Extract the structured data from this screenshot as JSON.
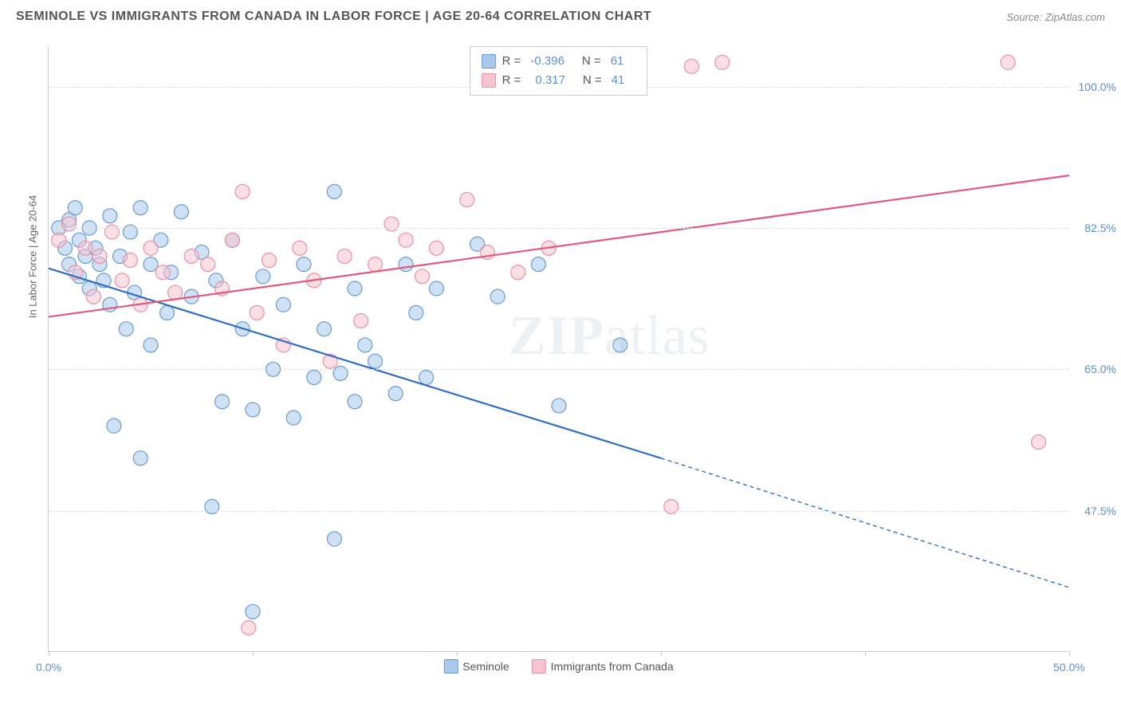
{
  "header": {
    "title": "SEMINOLE VS IMMIGRANTS FROM CANADA IN LABOR FORCE | AGE 20-64 CORRELATION CHART",
    "source": "Source: ZipAtlas.com"
  },
  "watermark": {
    "part1": "ZIP",
    "part2": "atlas"
  },
  "chart": {
    "type": "scatter",
    "y_axis_label": "In Labor Force | Age 20-64",
    "xlim": [
      0,
      50
    ],
    "ylim": [
      30,
      105
    ],
    "x_ticks": [
      0,
      10,
      20,
      30,
      40,
      50
    ],
    "x_tick_labels": {
      "0": "0.0%",
      "50": "50.0%"
    },
    "y_gridlines": [
      47.5,
      65.0,
      82.5,
      100.0
    ],
    "y_tick_labels": [
      "47.5%",
      "65.0%",
      "82.5%",
      "100.0%"
    ],
    "background_color": "#ffffff",
    "grid_color": "#dddddd",
    "axis_color": "#cccccc",
    "tick_label_color": "#5b8fd6",
    "marker_radius": 9,
    "marker_opacity": 0.55,
    "line_width": 2.2,
    "series": [
      {
        "name": "Seminole",
        "color_fill": "#a8c8ec",
        "color_stroke": "#6b9bd1",
        "line_color": "#2e6fc4",
        "R": "-0.396",
        "N": "61",
        "regression": {
          "x1": 0,
          "y1": 77.5,
          "x2": 30,
          "y2": 54,
          "dash_x2": 50,
          "dash_y2": 38
        },
        "points": [
          [
            0.5,
            82.5
          ],
          [
            0.8,
            80.0
          ],
          [
            1.0,
            83.5
          ],
          [
            1.0,
            78.0
          ],
          [
            1.3,
            85.0
          ],
          [
            1.5,
            76.5
          ],
          [
            1.5,
            81.0
          ],
          [
            1.8,
            79.0
          ],
          [
            2.0,
            75.0
          ],
          [
            2.0,
            82.5
          ],
          [
            2.3,
            80.0
          ],
          [
            2.5,
            78.0
          ],
          [
            2.7,
            76.0
          ],
          [
            3.0,
            73.0
          ],
          [
            3.0,
            84.0
          ],
          [
            3.2,
            58.0
          ],
          [
            3.5,
            79.0
          ],
          [
            3.8,
            70.0
          ],
          [
            4.0,
            82.0
          ],
          [
            4.2,
            74.5
          ],
          [
            4.5,
            85.0
          ],
          [
            4.5,
            54.0
          ],
          [
            5.0,
            78.0
          ],
          [
            5.0,
            68.0
          ],
          [
            5.5,
            81.0
          ],
          [
            5.8,
            72.0
          ],
          [
            6.0,
            77.0
          ],
          [
            6.5,
            84.5
          ],
          [
            7.0,
            74.0
          ],
          [
            7.5,
            79.5
          ],
          [
            8.0,
            48.0
          ],
          [
            8.2,
            76.0
          ],
          [
            8.5,
            61.0
          ],
          [
            9.0,
            81.0
          ],
          [
            9.5,
            70.0
          ],
          [
            10.0,
            35.0
          ],
          [
            10.0,
            60.0
          ],
          [
            10.5,
            76.5
          ],
          [
            11.0,
            65.0
          ],
          [
            11.5,
            73.0
          ],
          [
            12.0,
            59.0
          ],
          [
            12.5,
            78.0
          ],
          [
            13.0,
            64.0
          ],
          [
            13.5,
            70.0
          ],
          [
            14.0,
            87.0
          ],
          [
            14.0,
            44.0
          ],
          [
            14.3,
            64.5
          ],
          [
            15.0,
            61.0
          ],
          [
            15.0,
            75.0
          ],
          [
            15.5,
            68.0
          ],
          [
            16.0,
            66.0
          ],
          [
            17.0,
            62.0
          ],
          [
            17.5,
            78.0
          ],
          [
            18.0,
            72.0
          ],
          [
            18.5,
            64.0
          ],
          [
            19.0,
            75.0
          ],
          [
            21.0,
            80.5
          ],
          [
            22.0,
            74.0
          ],
          [
            24.0,
            78.0
          ],
          [
            25.0,
            60.5
          ],
          [
            28.0,
            68.0
          ]
        ]
      },
      {
        "name": "Immigrants from Canada",
        "color_fill": "#f6c4d0",
        "color_stroke": "#e991a7",
        "line_color": "#e05a7e",
        "R": "0.317",
        "N": "41",
        "regression": {
          "x1": 0,
          "y1": 71.5,
          "x2": 50,
          "y2": 89
        },
        "points": [
          [
            0.5,
            81.0
          ],
          [
            1.0,
            83.0
          ],
          [
            1.3,
            77.0
          ],
          [
            1.8,
            80.0
          ],
          [
            2.2,
            74.0
          ],
          [
            2.5,
            79.0
          ],
          [
            3.1,
            82.0
          ],
          [
            3.6,
            76.0
          ],
          [
            4.0,
            78.5
          ],
          [
            4.5,
            73.0
          ],
          [
            5.0,
            80.0
          ],
          [
            5.6,
            77.0
          ],
          [
            6.2,
            74.5
          ],
          [
            7.0,
            79.0
          ],
          [
            7.8,
            78.0
          ],
          [
            8.5,
            75.0
          ],
          [
            9.0,
            81.0
          ],
          [
            9.5,
            87.0
          ],
          [
            9.8,
            33.0
          ],
          [
            10.2,
            72.0
          ],
          [
            10.8,
            78.5
          ],
          [
            11.5,
            68.0
          ],
          [
            12.3,
            80.0
          ],
          [
            13.0,
            76.0
          ],
          [
            13.8,
            66.0
          ],
          [
            14.5,
            79.0
          ],
          [
            15.3,
            71.0
          ],
          [
            16.0,
            78.0
          ],
          [
            16.8,
            83.0
          ],
          [
            17.5,
            81.0
          ],
          [
            18.3,
            76.5
          ],
          [
            19.0,
            80.0
          ],
          [
            20.5,
            86.0
          ],
          [
            21.5,
            79.5
          ],
          [
            23.0,
            77.0
          ],
          [
            24.5,
            80.0
          ],
          [
            30.5,
            48.0
          ],
          [
            31.5,
            102.5
          ],
          [
            33.0,
            103.0
          ],
          [
            47.0,
            103.0
          ],
          [
            48.5,
            56.0
          ]
        ]
      }
    ],
    "legend_bottom": [
      {
        "label": "Seminole",
        "fill": "#a8c8ec",
        "stroke": "#6b9bd1"
      },
      {
        "label": "Immigrants from Canada",
        "fill": "#f6c4d0",
        "stroke": "#e991a7"
      }
    ]
  }
}
